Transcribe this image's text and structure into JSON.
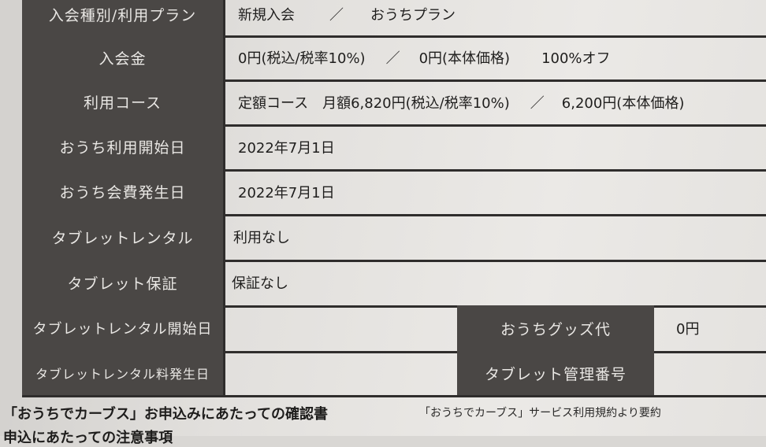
{
  "rows": [
    {
      "label": "入会種別/利用プラン",
      "value": [
        "新規入会",
        "／",
        "おうちプラン"
      ]
    },
    {
      "label": "入会金",
      "value": [
        "0円(税込/税率10%)",
        "／",
        "0円(本体価格)",
        "100%オフ"
      ]
    },
    {
      "label": "利用コース",
      "value": [
        "定額コース",
        "月額6,820円(税込/税率10%)",
        "／",
        "6,200円(本体価格)"
      ]
    },
    {
      "label": "おうち利用開始日",
      "value": [
        "2022年7月1日"
      ]
    },
    {
      "label": "おうち会費発生日",
      "value": [
        "2022年7月1日"
      ]
    },
    {
      "label": "タブレットレンタル",
      "value": [
        "利用なし"
      ]
    },
    {
      "label": "タブレット保証",
      "value": [
        "保証なし"
      ]
    },
    {
      "label": "タブレットレンタル開始日",
      "value": [
        ""
      ],
      "label2": "おうちグッズ代",
      "value2": "0円"
    },
    {
      "label": "タブレットレンタル料発生日",
      "value": [
        ""
      ],
      "label2": "タブレット管理番号",
      "value2": ""
    }
  ],
  "footer": {
    "title": "「おうちでカーブス」お申込みにあたっての確認書",
    "note": "「おうちでカーブス」サービス利用規約より要約",
    "cutoff": "申込にあたっての注意事項"
  }
}
